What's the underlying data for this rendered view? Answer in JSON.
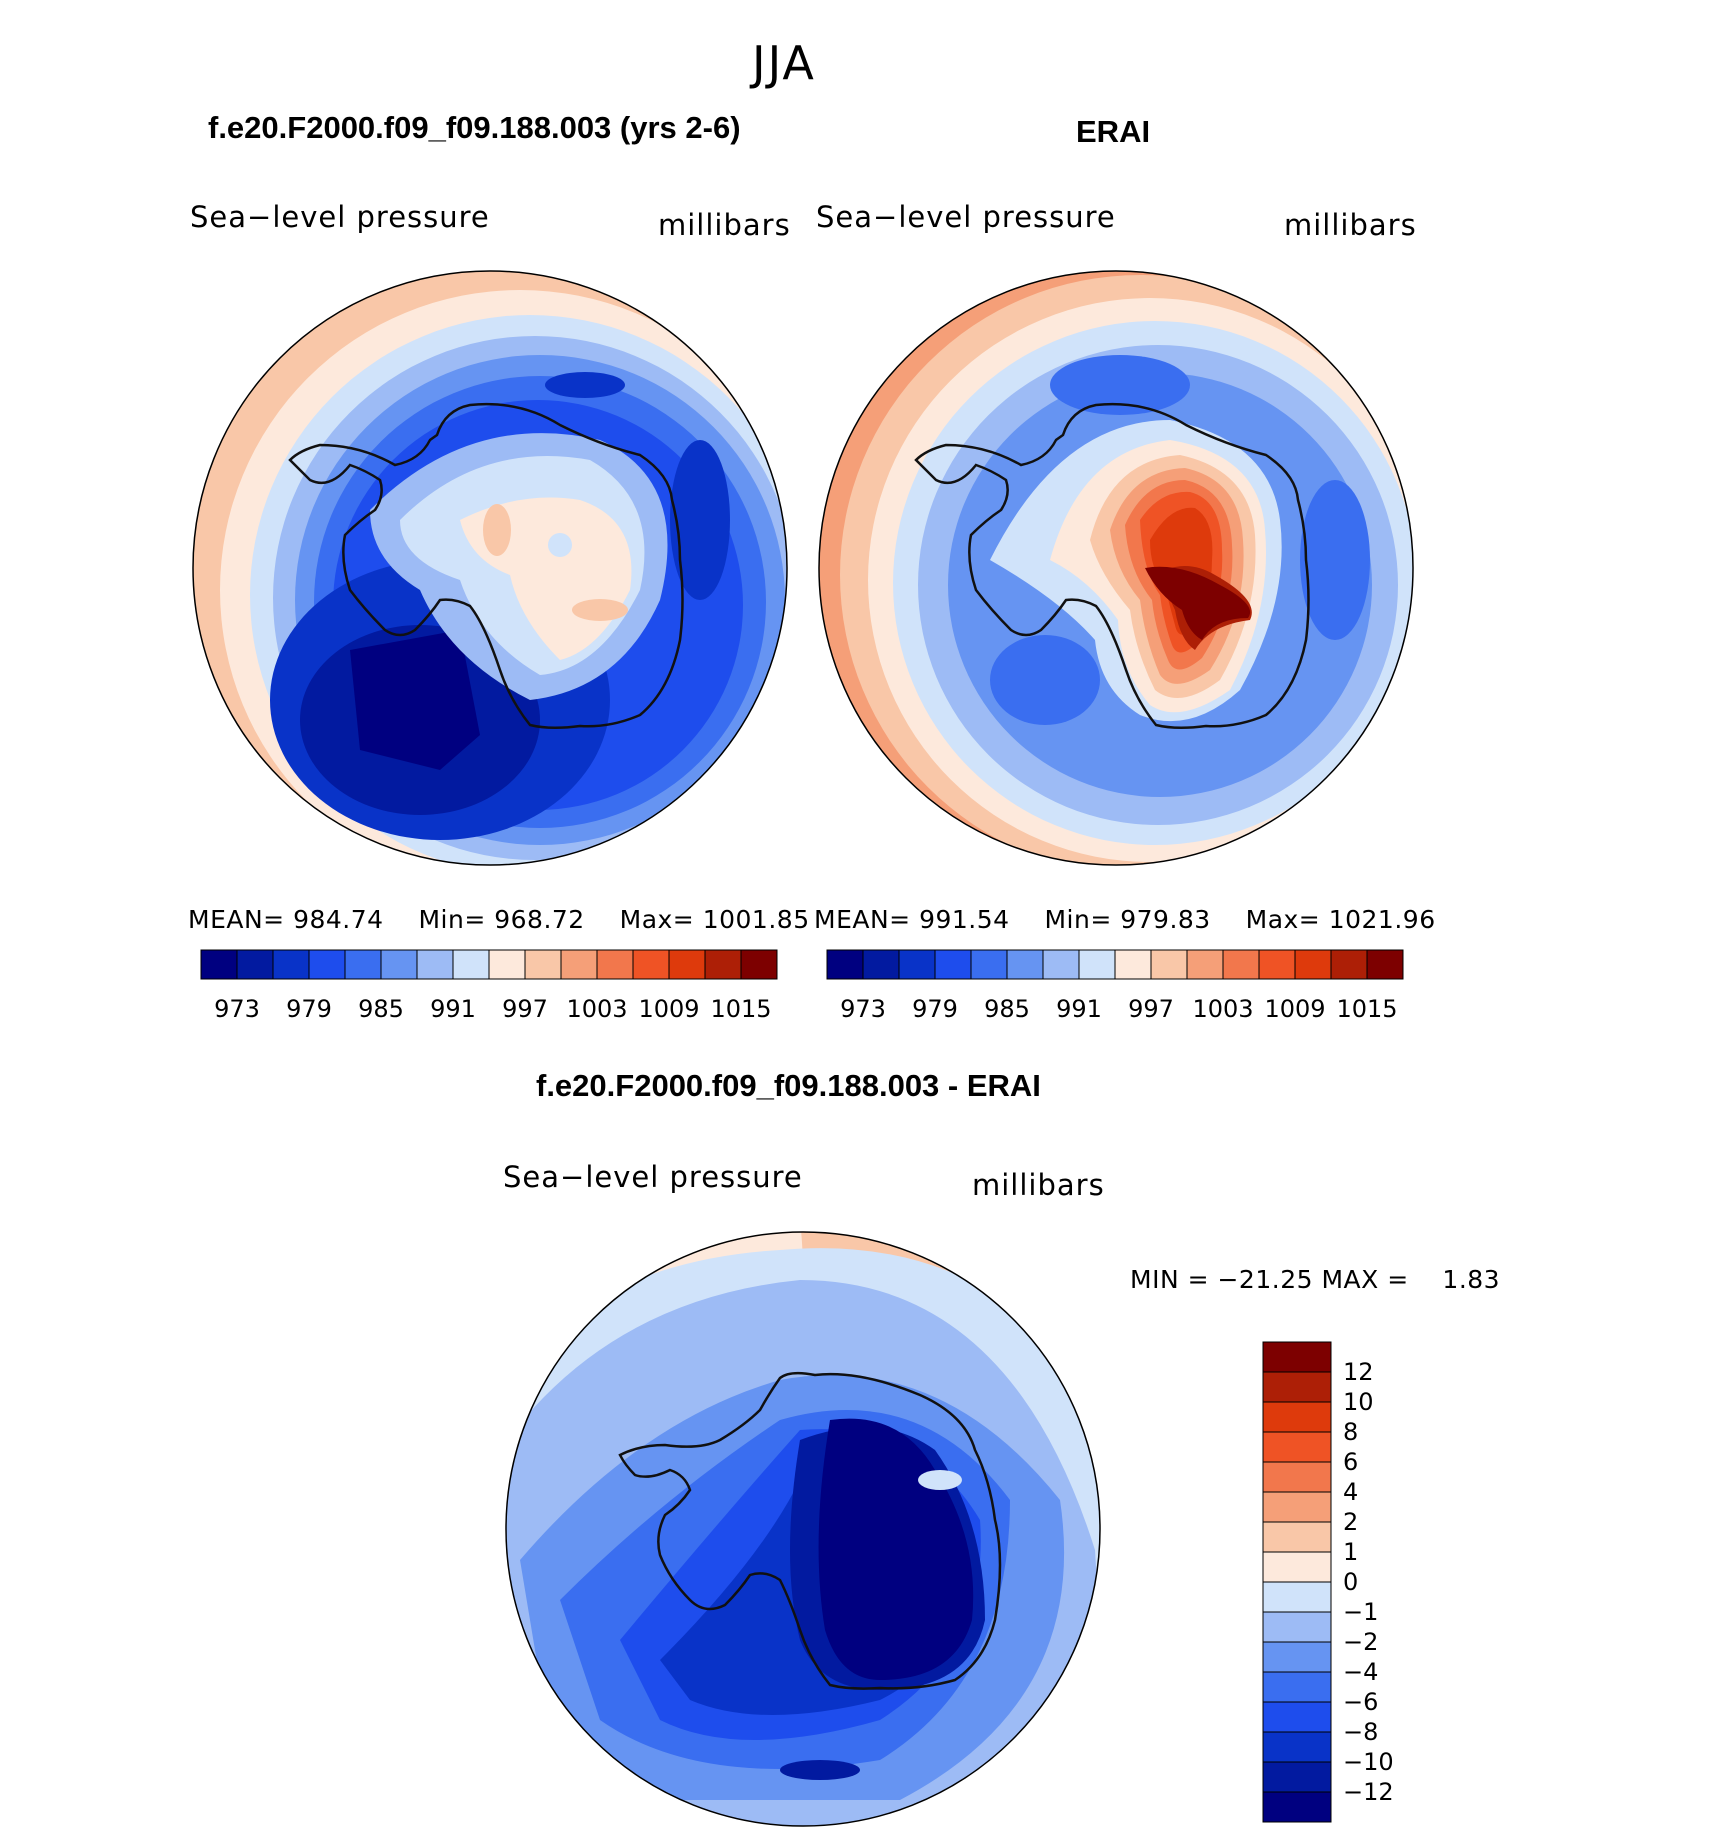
{
  "title": "JJA",
  "colors": {
    "abs_scale": [
      "#000080",
      "#021aa0",
      "#0933c8",
      "#1e4ded",
      "#3a6ef0",
      "#6694f2",
      "#9dbbf5",
      "#d0e3fa",
      "#fde9dc",
      "#f9c7a8",
      "#f59f78",
      "#f2774c",
      "#ef5325",
      "#de3a0c",
      "#ad1f06",
      "#7d0000"
    ],
    "diff_scale": [
      "#000080",
      "#021aa0",
      "#0933c8",
      "#1e4ded",
      "#3a6ef0",
      "#6694f2",
      "#9dbbf5",
      "#d0e3fa",
      "#fde9dc",
      "#f9c7a8",
      "#f59f78",
      "#f2774c",
      "#ef5325",
      "#de3a0c",
      "#ad1f06",
      "#7d0000"
    ],
    "coast": "#111111"
  },
  "panels": [
    {
      "id": "model",
      "title": "f.e20.F2000.f09_f09.188.003 (yrs 2-6)",
      "variable": "Sea−level pressure",
      "units": "millibars",
      "stats": {
        "mean_label": "MEAN=",
        "mean": "984.74",
        "min_label": "Min=",
        "min": "968.72",
        "max_label": "Max=",
        "max": "1001.85"
      },
      "colorbar_ticks": [
        "973",
        "979",
        "985",
        "991",
        "997",
        "1003",
        "1009",
        "1015"
      ]
    },
    {
      "id": "obs",
      "title": "ERAI",
      "variable": "Sea−level pressure",
      "units": "millibars",
      "stats": {
        "mean_label": "MEAN=",
        "mean": "991.54",
        "min_label": "Min=",
        "min": "979.83",
        "max_label": "Max=",
        "max": "1021.96"
      },
      "colorbar_ticks": [
        "973",
        "979",
        "985",
        "991",
        "997",
        "1003",
        "1009",
        "1015"
      ]
    }
  ],
  "difference": {
    "title": "f.e20.F2000.f09_f09.188.003 - ERAI",
    "variable": "Sea−level pressure",
    "units": "millibars",
    "minmax": "MIN = −21.25 MAX =    1.83",
    "colorbar_ticks": [
      "12",
      "10",
      "8",
      "6",
      "4",
      "2",
      "1",
      "0",
      "−1",
      "−2",
      "−4",
      "−6",
      "−8",
      "−10",
      "−12"
    ]
  },
  "chart_data": [
    {
      "type": "heatmap",
      "projection": "south-polar-stereographic",
      "title": "f.e20.F2000.f09_f09.188.003 (yrs 2-6)",
      "field": "Sea-level pressure",
      "units": "millibars",
      "season": "JJA",
      "mean": 984.74,
      "min": 968.72,
      "max": 1001.85,
      "contour_levels": [
        973,
        976,
        979,
        982,
        985,
        988,
        991,
        994,
        997,
        1000,
        1003,
        1006,
        1009,
        1012,
        1015
      ]
    },
    {
      "type": "heatmap",
      "projection": "south-polar-stereographic",
      "title": "ERAI",
      "field": "Sea-level pressure",
      "units": "millibars",
      "season": "JJA",
      "mean": 991.54,
      "min": 979.83,
      "max": 1021.96,
      "contour_levels": [
        973,
        976,
        979,
        982,
        985,
        988,
        991,
        994,
        997,
        1000,
        1003,
        1006,
        1009,
        1012,
        1015
      ]
    },
    {
      "type": "heatmap",
      "projection": "south-polar-stereographic",
      "title": "f.e20.F2000.f09_f09.188.003 - ERAI",
      "field": "Sea-level pressure difference",
      "units": "millibars",
      "season": "JJA",
      "min": -21.25,
      "max": 1.83,
      "contour_levels": [
        -12,
        -10,
        -8,
        -6,
        -4,
        -2,
        -1,
        0,
        1,
        2,
        4,
        6,
        8,
        10,
        12
      ]
    }
  ]
}
